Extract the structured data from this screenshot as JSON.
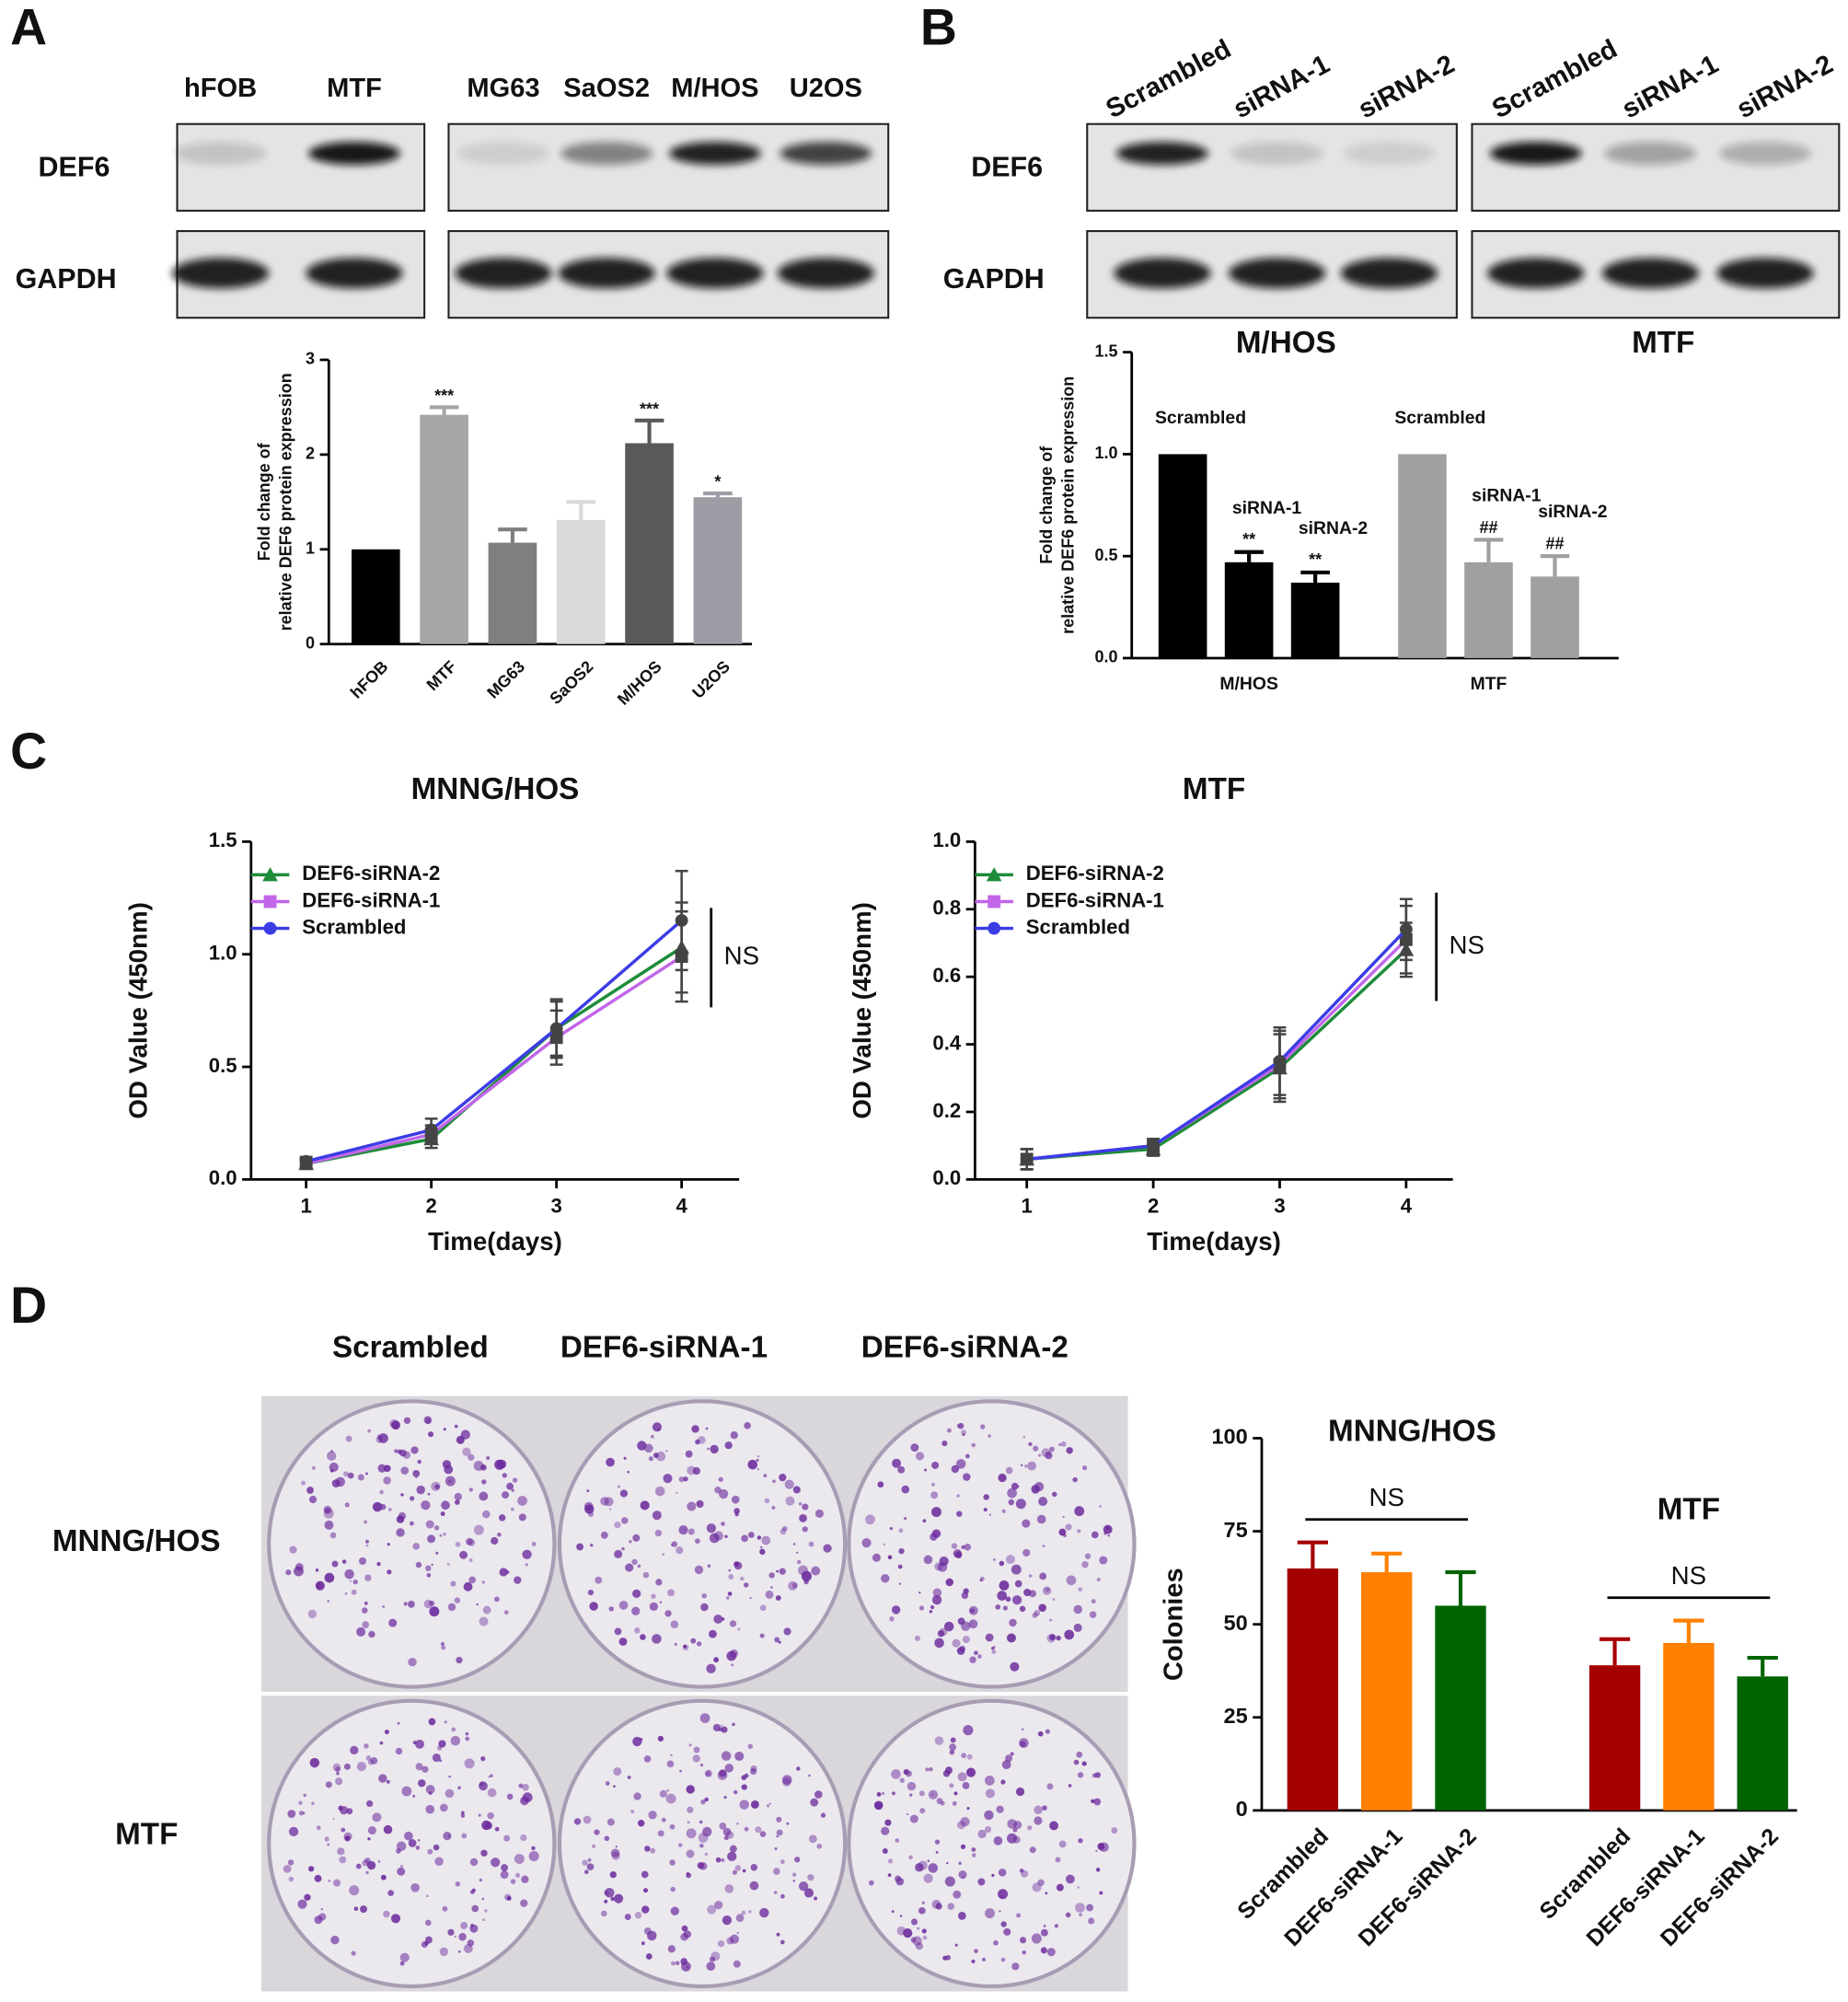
{
  "figure": {
    "panels": [
      "A",
      "B",
      "C",
      "D"
    ],
    "blot_A": {
      "lanes": [
        "hFOB",
        "MTF",
        "MG63",
        "SaOS2",
        "M/HOS",
        "U2OS"
      ],
      "rows": [
        "DEF6",
        "GAPDH"
      ]
    },
    "blot_B": {
      "lanes": [
        "Scrambled",
        "siRNA-1",
        "siRNA-2",
        "Scrambled",
        "siRNA-1",
        "siRNA-2"
      ],
      "rows": [
        "DEF6",
        "GAPDH"
      ]
    },
    "plates_D": {
      "columns": [
        "Scrambled",
        "DEF6-siRNA-1",
        "DEF6-siRNA-2"
      ],
      "rows": [
        "MNNG/HOS",
        "MTF"
      ]
    }
  },
  "chart_data": [
    {
      "type": "bar",
      "ylabel": [
        "Fold change of",
        "relative DEF6 protein expression"
      ],
      "categories": [
        "hFOB",
        "MTF",
        "MG63",
        "SaOS2",
        "M/HOS",
        "U2OS"
      ],
      "values": [
        1.0,
        2.42,
        1.07,
        1.31,
        2.12,
        1.55
      ],
      "errors": [
        null,
        0.08,
        0.14,
        0.19,
        0.24,
        0.04
      ],
      "annotations": [
        null,
        "***",
        null,
        null,
        "***",
        "*"
      ],
      "colors": [
        "#000000",
        "#a6a6a6",
        "#7f7f7f",
        "#d9d9d9",
        "#595959",
        "#9d9da6"
      ],
      "ylim": [
        0,
        3
      ],
      "yticks": [
        0,
        1,
        2,
        3
      ]
    },
    {
      "type": "bar",
      "ylabel": [
        "Fold change of",
        "relative DEF6 protein expression"
      ],
      "categories": [
        "M/HOS",
        "MTF"
      ],
      "colors": [
        "#000000",
        "#a0a0a0"
      ],
      "series": [
        {
          "name": "Scrambled",
          "values": [
            1.0,
            1.0
          ],
          "errors": [
            null,
            null
          ],
          "annotations": [
            null,
            null
          ]
        },
        {
          "name": "siRNA-1",
          "values": [
            0.47,
            0.47
          ],
          "errors": [
            0.05,
            0.11
          ],
          "annotations": [
            "**",
            "##"
          ]
        },
        {
          "name": "siRNA-2",
          "values": [
            0.37,
            0.4
          ],
          "errors": [
            0.05,
            0.1
          ],
          "annotations": [
            "**",
            "##"
          ]
        }
      ],
      "ylim": [
        0,
        1.5
      ],
      "yticks": [
        {
          "value": 0,
          "label": "0.0"
        },
        0.5,
        {
          "value": 1,
          "label": "1.0"
        },
        1.5
      ]
    },
    {
      "type": "line",
      "title": "MNNG/HOS",
      "xlabel": "Time(days)",
      "ylabel": "OD Value (450nm)",
      "annotation": "NS",
      "x": [
        1,
        2,
        3,
        4
      ],
      "series": [
        {
          "name": "DEF6-siRNA-2",
          "color": "#1e8c3a",
          "marker": "triangle",
          "values": [
            0.07,
            0.18,
            0.67,
            1.03
          ],
          "errors": [
            0.02,
            0.04,
            0.12,
            0.2
          ]
        },
        {
          "name": "DEF6-siRNA-1",
          "color": "#c266e8",
          "marker": "square",
          "values": [
            0.07,
            0.2,
            0.63,
            0.99
          ],
          "errors": [
            0.02,
            0.04,
            0.12,
            0.2
          ]
        },
        {
          "name": "Scrambled",
          "color": "#3c3ce6",
          "marker": "circle",
          "values": [
            0.08,
            0.22,
            0.67,
            1.15
          ],
          "errors": [
            0.02,
            0.05,
            0.13,
            0.22
          ]
        }
      ],
      "xlim": [
        0.56,
        4.46
      ],
      "xticks": [
        1,
        2,
        3,
        4
      ],
      "ylim": [
        0,
        1.5
      ],
      "yticks": [
        {
          "value": 0,
          "label": "0.0"
        },
        0.5,
        {
          "value": 1,
          "label": "1.0"
        },
        1.5
      ]
    },
    {
      "type": "line",
      "title": "MTF",
      "xlabel": "Time(days)",
      "ylabel": "OD Value (450nm)",
      "annotation": "NS",
      "x": [
        1,
        2,
        3,
        4
      ],
      "series": [
        {
          "name": "DEF6-siRNA-2",
          "color": "#1e8c3a",
          "marker": "triangle",
          "values": [
            0.06,
            0.09,
            0.33,
            0.68
          ],
          "errors": [
            0.03,
            0.02,
            0.1,
            0.08
          ]
        },
        {
          "name": "DEF6-siRNA-1",
          "color": "#c266e8",
          "marker": "square",
          "values": [
            0.06,
            0.1,
            0.34,
            0.71
          ],
          "errors": [
            0.03,
            0.02,
            0.1,
            0.1
          ]
        },
        {
          "name": "Scrambled",
          "color": "#3c3ce6",
          "marker": "circle",
          "values": [
            0.06,
            0.1,
            0.35,
            0.74
          ],
          "errors": [
            0.03,
            0.02,
            0.1,
            0.09
          ]
        }
      ],
      "xlim": [
        0.59,
        4.37
      ],
      "xticks": [
        1,
        2,
        3,
        4
      ],
      "ylim": [
        0,
        1
      ],
      "yticks": [
        {
          "value": 0,
          "label": "0.0"
        },
        0.2,
        0.4,
        0.6,
        0.8,
        {
          "value": 1,
          "label": "1.0"
        }
      ]
    },
    {
      "type": "bar",
      "ylabel": "Colonies",
      "categories": [
        "MNNG/HOS",
        "MTF"
      ],
      "group_annotations": [
        "NS",
        "NS"
      ],
      "series": [
        {
          "name": "Scrambled",
          "color": "#a50000",
          "values": [
            65,
            39
          ],
          "errors": [
            7,
            7
          ]
        },
        {
          "name": "DEF6-siRNA-1",
          "color": "#ff8000",
          "values": [
            64,
            45
          ],
          "errors": [
            5,
            6
          ]
        },
        {
          "name": "DEF6-siRNA-2",
          "color": "#006400",
          "values": [
            55,
            36
          ],
          "errors": [
            9,
            5
          ]
        }
      ],
      "ylim": [
        0,
        100
      ],
      "yticks": [
        0,
        25,
        50,
        75,
        100
      ]
    }
  ]
}
